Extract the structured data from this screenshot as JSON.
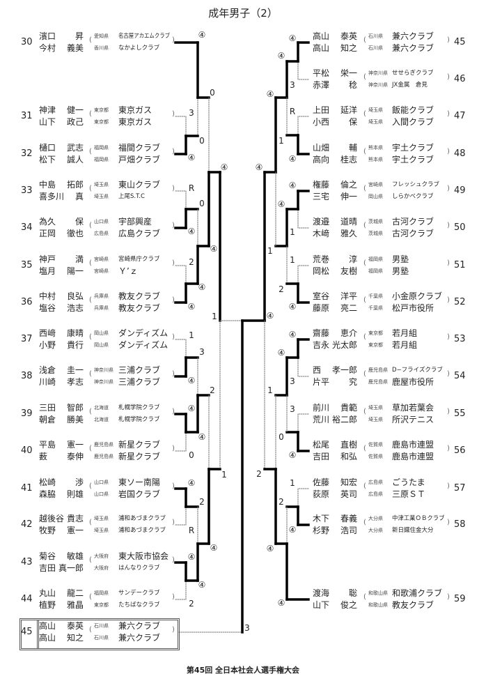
{
  "title": "成年男子（2）",
  "footer": "第45回 全日本社会人選手権大会",
  "left": {
    "entries": [
      {
        "num": "30",
        "p": [
          {
            "sur": "濱口",
            "given": "昇",
            "pref": "愛知県",
            "club": "名古屋アカエムクラブ"
          },
          {
            "sur": "今村",
            "given": "義美",
            "pref": "香川県",
            "club": "なかよしクラブ"
          }
        ]
      },
      {
        "num": "31",
        "p": [
          {
            "sur": "神津",
            "given": "健一",
            "pref": "東京都",
            "club": "東京ガス"
          },
          {
            "sur": "山下",
            "given": "政己",
            "pref": "東京都",
            "club": "東京ガス"
          }
        ]
      },
      {
        "num": "32",
        "p": [
          {
            "sur": "樋口",
            "given": "武志",
            "pref": "福岡県",
            "club": "福間クラブ"
          },
          {
            "sur": "松下",
            "given": "誠人",
            "pref": "福岡県",
            "club": "戸畑クラブ"
          }
        ]
      },
      {
        "num": "33",
        "p": [
          {
            "sur": "中島",
            "given": "拓郎",
            "pref": "埼玉県",
            "club": "東山クラブ"
          },
          {
            "sur": "喜多川",
            "given": "真",
            "pref": "埼玉県",
            "club": "上尾S.T.C"
          }
        ]
      },
      {
        "num": "34",
        "p": [
          {
            "sur": "為久",
            "given": "保",
            "pref": "山口県",
            "club": "宇部興産"
          },
          {
            "sur": "正岡",
            "given": "徹也",
            "pref": "広島県",
            "club": "広島クラブ"
          }
        ]
      },
      {
        "num": "35",
        "p": [
          {
            "sur": "神戸",
            "given": "満",
            "pref": "宮崎県",
            "club": "宮崎県庁クラブ"
          },
          {
            "sur": "塩月",
            "given": "陽一",
            "pref": "宮崎県",
            "club": "Ｙ’ｚ"
          }
        ]
      },
      {
        "num": "36",
        "p": [
          {
            "sur": "中村",
            "given": "良弘",
            "pref": "兵庫県",
            "club": "教友クラブ"
          },
          {
            "sur": "塩谷",
            "given": "浩志",
            "pref": "兵庫県",
            "club": "教友クラブ"
          }
        ]
      },
      {
        "num": "37",
        "p": [
          {
            "sur": "西﨑",
            "given": "康晴",
            "pref": "岡山県",
            "club": "ダンディズム"
          },
          {
            "sur": "小野",
            "given": "貴行",
            "pref": "岡山県",
            "club": "ダンディズム"
          }
        ]
      },
      {
        "num": "38",
        "p": [
          {
            "sur": "浅倉",
            "given": "圭一",
            "pref": "神奈川県",
            "club": "三浦クラブ"
          },
          {
            "sur": "川崎",
            "given": "孝志",
            "pref": "神奈川県",
            "club": "三浦クラブ"
          }
        ]
      },
      {
        "num": "39",
        "p": [
          {
            "sur": "三田",
            "given": "智郎",
            "pref": "北海道",
            "club": "札幌学院クラブ"
          },
          {
            "sur": "朝倉",
            "given": "勝美",
            "pref": "北海道",
            "club": "札幌学院クラブ"
          }
        ]
      },
      {
        "num": "40",
        "p": [
          {
            "sur": "平島",
            "given": "憲一",
            "pref": "鹿児島県",
            "club": "新星クラブ"
          },
          {
            "sur": "薮",
            "given": "泰伸",
            "pref": "鹿児島県",
            "club": "新星クラブ"
          }
        ]
      },
      {
        "num": "41",
        "p": [
          {
            "sur": "松崎",
            "given": "渉",
            "pref": "山口県",
            "club": "東ソー南陽"
          },
          {
            "sur": "森脇",
            "given": "則雄",
            "pref": "山口県",
            "club": "岩国クラブ"
          }
        ]
      },
      {
        "num": "42",
        "p": [
          {
            "sur": "越後谷",
            "given": "貴志",
            "pref": "埼玉県",
            "club": "浦和あづまクラブ"
          },
          {
            "sur": "牧野",
            "given": "憲一",
            "pref": "埼玉県",
            "club": "浦和あづまクラブ"
          }
        ]
      },
      {
        "num": "43",
        "p": [
          {
            "sur": "菊谷",
            "given": "敏雄",
            "pref": "大阪府",
            "club": "東大阪市協会"
          },
          {
            "sur": "吉田",
            "given": "真一郎",
            "pref": "大阪府",
            "club": "はんなりクラブ"
          }
        ]
      },
      {
        "num": "44",
        "p": [
          {
            "sur": "丸山",
            "given": "龍二",
            "pref": "福岡県",
            "club": "サンデークラブ"
          },
          {
            "sur": "植野",
            "given": "雅晶",
            "pref": "東京都",
            "club": "たちばなクラブ"
          }
        ]
      },
      {
        "num": "45",
        "p": [
          {
            "sur": "高山",
            "given": "泰英",
            "pref": "石川県",
            "club": "兼六クラブ"
          },
          {
            "sur": "高山",
            "given": "知之",
            "pref": "石川県",
            "club": "兼六クラブ"
          }
        ]
      }
    ],
    "scores": [
      "④",
      "0",
      "3",
      "0",
      "④",
      "④",
      "R",
      "0",
      "④",
      "④",
      "2",
      "④",
      "④",
      "1",
      "1",
      "3",
      "④",
      "2",
      "④",
      "④",
      "0",
      "1",
      "④",
      "2",
      "R",
      "④",
      "④",
      "④",
      "2",
      "3"
    ]
  },
  "right": {
    "entries": [
      {
        "num": "45",
        "p": [
          {
            "sur": "高山",
            "given": "泰英",
            "pref": "石川県",
            "club": "兼六クラブ"
          },
          {
            "sur": "高山",
            "given": "知之",
            "pref": "石川県",
            "club": "兼六クラブ"
          }
        ]
      },
      {
        "num": "46",
        "p": [
          {
            "sur": "平松",
            "given": "栄一",
            "pref": "神奈川県",
            "club": "せせらぎクラブ"
          },
          {
            "sur": "赤澤",
            "given": "稔",
            "pref": "神奈川県",
            "club": "JX金属　倉見"
          }
        ]
      },
      {
        "num": "47",
        "p": [
          {
            "sur": "上田",
            "given": "延洋",
            "pref": "埼玉県",
            "club": "飯能クラブ"
          },
          {
            "sur": "小西",
            "given": "保",
            "pref": "埼玉県",
            "club": "入間クラブ"
          }
        ]
      },
      {
        "num": "48",
        "p": [
          {
            "sur": "山畑",
            "given": "輔",
            "pref": "熊本県",
            "club": "宇土クラブ"
          },
          {
            "sur": "高向",
            "given": "桂志",
            "pref": "熊本県",
            "club": "宇土クラブ"
          }
        ]
      },
      {
        "num": "49",
        "p": [
          {
            "sur": "権藤",
            "given": "倫之",
            "pref": "宮崎県",
            "club": "フレッシュクラブ"
          },
          {
            "sur": "三宅",
            "given": "伸一",
            "pref": "岡山県",
            "club": "しらかべクラブ"
          }
        ]
      },
      {
        "num": "50",
        "p": [
          {
            "sur": "渡邉",
            "given": "道晴",
            "pref": "茨城県",
            "club": "古河クラブ"
          },
          {
            "sur": "木﨑",
            "given": "雅久",
            "pref": "茨城県",
            "club": "古河クラブ"
          }
        ]
      },
      {
        "num": "51",
        "p": [
          {
            "sur": "荒巻",
            "given": "淳",
            "pref": "福岡県",
            "club": "男塾"
          },
          {
            "sur": "岡松",
            "given": "友樹",
            "pref": "福岡県",
            "club": "男塾"
          }
        ]
      },
      {
        "num": "52",
        "p": [
          {
            "sur": "室谷",
            "given": "洋平",
            "pref": "千葉県",
            "club": "小金原クラブ"
          },
          {
            "sur": "藤原",
            "given": "亮二",
            "pref": "千葉県",
            "club": "松戸市役所"
          }
        ]
      },
      {
        "num": "53",
        "p": [
          {
            "sur": "齋藤",
            "given": "恵介",
            "pref": "東京都",
            "club": "若月組"
          },
          {
            "sur": "吉永",
            "given": "光太郎",
            "pref": "東京都",
            "club": "若月組"
          }
        ]
      },
      {
        "num": "54",
        "p": [
          {
            "sur": "西",
            "given": "孝一郎",
            "pref": "鹿児島県",
            "club": "D−フライズクラブ"
          },
          {
            "sur": "片平",
            "given": "究",
            "pref": "鹿児島県",
            "club": "鹿屋市役所"
          }
        ]
      },
      {
        "num": "55",
        "p": [
          {
            "sur": "前川",
            "given": "貴範",
            "pref": "埼玉県",
            "club": "草加若葉会"
          },
          {
            "sur": "荒川",
            "given": "裕二郎",
            "pref": "埼玉県",
            "club": "所沢テニス"
          }
        ]
      },
      {
        "num": "56",
        "p": [
          {
            "sur": "松尾",
            "given": "直樹",
            "pref": "佐賀県",
            "club": "鹿島市連盟"
          },
          {
            "sur": "吉田",
            "given": "和弘",
            "pref": "佐賀県",
            "club": "鹿島市連盟"
          }
        ]
      },
      {
        "num": "57",
        "p": [
          {
            "sur": "佐藤",
            "given": "知宏",
            "pref": "広島県",
            "club": "ごうたま"
          },
          {
            "sur": "荻原",
            "given": "英司",
            "pref": "広島県",
            "club": "三原ＳＴ"
          }
        ]
      },
      {
        "num": "58",
        "p": [
          {
            "sur": "木下",
            "given": "春義",
            "pref": "大分県",
            "club": "中津工業ＯＢクラブ"
          },
          {
            "sur": "杉野",
            "given": "浩司",
            "pref": "大分県",
            "club": "新日鐵住金大分"
          }
        ]
      },
      {
        "num": "59",
        "p": [
          {
            "sur": "渡海",
            "given": "聡",
            "pref": "和歌山県",
            "club": "和歌浦クラブ"
          },
          {
            "sur": "山下",
            "given": "俊之",
            "pref": "和歌山県",
            "club": "教友クラブ"
          }
        ]
      }
    ],
    "scores": [
      "④",
      "④",
      "3",
      "④",
      "R",
      "1",
      "④",
      "④",
      "④",
      "④",
      "1",
      "1",
      "1",
      "2",
      "④",
      "④",
      "④",
      "④",
      "3",
      "1",
      "3",
      "0",
      "④",
      "2",
      "1",
      "2",
      "④",
      "④",
      "④"
    ]
  }
}
